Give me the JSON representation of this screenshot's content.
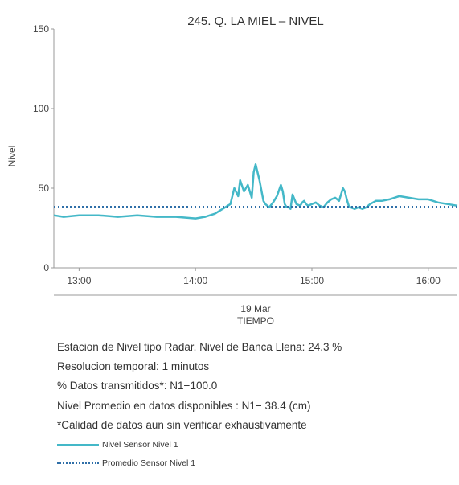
{
  "chart_data": {
    "type": "line",
    "title": "245. Q. LA MIEL – NIVEL",
    "ylabel": "Nivel",
    "xlabel": "TIEMPO",
    "xlabel_date": "19 Mar",
    "xlim": [
      "12:47",
      "16:15"
    ],
    "ylim": [
      0,
      150
    ],
    "yticks": [
      0,
      50,
      100,
      150
    ],
    "xticks": [
      "13:00",
      "14:00",
      "15:00",
      "16:00"
    ],
    "grid": false,
    "colors": {
      "series": "#44b8c8",
      "average": "#2f6fa8",
      "axis": "#999999"
    },
    "series": [
      {
        "name": "Nivel Sensor Nivel 1",
        "style": "solid",
        "x": [
          "12:47",
          "12:52",
          "13:00",
          "13:10",
          "13:20",
          "13:30",
          "13:40",
          "13:50",
          "14:00",
          "14:05",
          "14:10",
          "14:14",
          "14:18",
          "14:20",
          "14:22",
          "14:23",
          "14:25",
          "14:27",
          "14:29",
          "14:30",
          "14:31",
          "14:33",
          "14:35",
          "14:36",
          "14:38",
          "14:40",
          "14:42",
          "14:44",
          "14:45",
          "14:46",
          "14:47",
          "14:48",
          "14:49",
          "14:50",
          "14:52",
          "14:54",
          "14:55",
          "14:56",
          "14:57",
          "14:58",
          "15:00",
          "15:02",
          "15:04",
          "15:06",
          "15:08",
          "15:10",
          "15:12",
          "15:14",
          "15:16",
          "15:17",
          "15:18",
          "15:19",
          "15:20",
          "15:22",
          "15:24",
          "15:26",
          "15:28",
          "15:30",
          "15:33",
          "15:36",
          "15:40",
          "15:45",
          "15:50",
          "15:55",
          "16:00",
          "16:05",
          "16:10",
          "16:15"
        ],
        "values": [
          33,
          32,
          33,
          33,
          32,
          33,
          32,
          32,
          31,
          32,
          34,
          37,
          40,
          50,
          45,
          55,
          48,
          52,
          44,
          60,
          65,
          55,
          42,
          40,
          38,
          41,
          45,
          52,
          48,
          40,
          38,
          38,
          37,
          46,
          40,
          39,
          41,
          42,
          40,
          39,
          40,
          41,
          39,
          38,
          41,
          43,
          44,
          42,
          50,
          48,
          43,
          39,
          38,
          37,
          38,
          37,
          38,
          40,
          42,
          42,
          43,
          45,
          44,
          43,
          43,
          41,
          40,
          39
        ]
      },
      {
        "name": "Promedio Sensor Nivel 1",
        "style": "dotted",
        "x": [
          "12:47",
          "16:15"
        ],
        "values": [
          38.4,
          38.4
        ]
      }
    ]
  },
  "info": {
    "lines": [
      "Estacion de Nivel tipo Radar. Nivel de Banca Llena: 24.3 %",
      "Resolucion temporal: 1 minutos",
      "% Datos transmitidos*: N1−100.0",
      "Nivel Promedio en datos disponibles : N1− 38.4 (cm)",
      "*Calidad de datos aun sin verificar exhaustivamente"
    ]
  }
}
